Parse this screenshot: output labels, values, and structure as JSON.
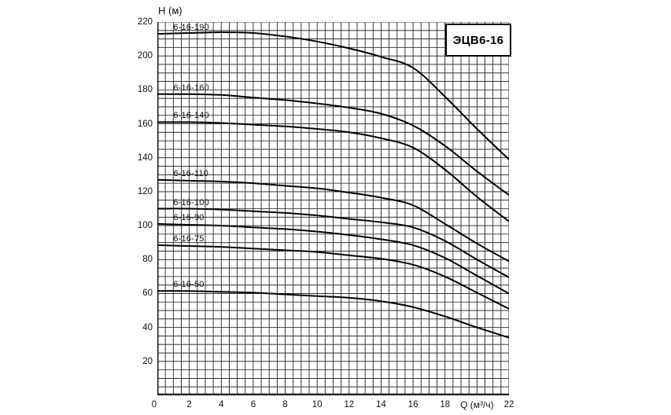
{
  "chart": {
    "title": "ЭЦВ6-16",
    "y_axis_title": "H (м)",
    "x_axis_title": "Q (м³/ч)"
  },
  "chart_data": {
    "type": "line",
    "title": "ЭЦВ6-16",
    "xlabel": "Q (м³/ч)",
    "ylabel": "H (м)",
    "xlim": [
      0,
      22
    ],
    "ylim": [
      0,
      220
    ],
    "x_tick_labels": [
      0,
      2,
      4,
      6,
      8,
      10,
      12,
      14,
      16,
      18,
      22
    ],
    "y_tick_labels": [
      20,
      40,
      60,
      80,
      100,
      120,
      140,
      160,
      180,
      200,
      220
    ],
    "x_title_position": 20,
    "grid": {
      "on": true,
      "minor_x_step": 0.5,
      "minor_y_step": 5
    },
    "legend_position": "labels-above-curves-at-left",
    "line_color": "#000000",
    "grid_color": "#1a1a1a",
    "x": [
      0,
      2,
      4,
      6,
      8,
      10,
      12,
      14,
      16,
      18,
      20,
      22
    ],
    "series": [
      {
        "name": "6-16-190",
        "values": [
          213,
          213.5,
          214,
          213.5,
          211.5,
          208.5,
          204.5,
          199.5,
          193,
          176,
          157,
          139
        ]
      },
      {
        "name": "6-16-160",
        "values": [
          177.5,
          177.5,
          177,
          175.5,
          174,
          172,
          169.5,
          166,
          159,
          147,
          132,
          118
        ]
      },
      {
        "name": "6-16-140",
        "values": [
          161,
          161,
          160.5,
          159.5,
          158.5,
          157,
          155,
          151.5,
          146,
          133,
          117,
          102.5
        ]
      },
      {
        "name": "6-16-110",
        "values": [
          127,
          126.5,
          126,
          125,
          123.5,
          122,
          119.5,
          116.5,
          112,
          101,
          89.5,
          79
        ]
      },
      {
        "name": "6-16-100",
        "values": [
          110,
          110,
          109.5,
          108.5,
          107.5,
          106,
          104,
          102,
          99,
          91,
          80,
          69.5
        ]
      },
      {
        "name": "6-16-90",
        "values": [
          101,
          100.5,
          100,
          99,
          98,
          96.5,
          94.5,
          92,
          88.5,
          81,
          70.5,
          60
        ]
      },
      {
        "name": "6-16-75",
        "values": [
          88.5,
          88,
          87.5,
          86.5,
          85.5,
          84.5,
          82.5,
          80.5,
          77,
          70,
          60.5,
          51
        ]
      },
      {
        "name": "6-16-50",
        "values": [
          61.5,
          61.5,
          61,
          60.5,
          59.5,
          58.5,
          57.5,
          55.5,
          52,
          46.5,
          40,
          34
        ]
      }
    ]
  }
}
